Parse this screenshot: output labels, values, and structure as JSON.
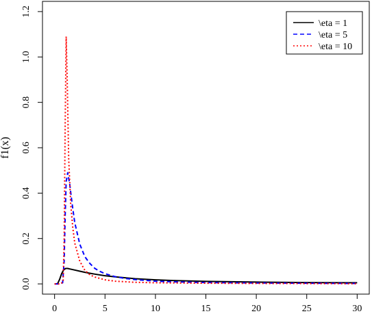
{
  "chart_data": {
    "type": "line",
    "title": "",
    "xlabel": "",
    "ylabel": "f1(x)",
    "xlim": [
      -1.2,
      31.2
    ],
    "ylim": [
      -0.045,
      1.245
    ],
    "x_ticks": [
      0,
      5,
      10,
      15,
      20,
      25,
      30
    ],
    "y_ticks": [
      0.0,
      0.2,
      0.4,
      0.6,
      0.8,
      1.0,
      1.2
    ],
    "x_tick_labels": [
      "0",
      "5",
      "10",
      "15",
      "20",
      "25",
      "30"
    ],
    "y_tick_labels": [
      "0.0",
      "0.2",
      "0.4",
      "0.6",
      "0.8",
      "1.0",
      "1.2"
    ],
    "grid": false,
    "legend_position": "top-right",
    "series": [
      {
        "name": "\\eta = 1",
        "color": "#000000",
        "dash": "solid",
        "points": [
          [
            0,
            0
          ],
          [
            0.3,
            0.001
          ],
          [
            0.5,
            0.02
          ],
          [
            0.7,
            0.045
          ],
          [
            0.9,
            0.062
          ],
          [
            1.1,
            0.068
          ],
          [
            1.3,
            0.068
          ],
          [
            1.5,
            0.066
          ],
          [
            2,
            0.061
          ],
          [
            2.5,
            0.056
          ],
          [
            3,
            0.051
          ],
          [
            3.5,
            0.047
          ],
          [
            4,
            0.043
          ],
          [
            5,
            0.036
          ],
          [
            6,
            0.031
          ],
          [
            7,
            0.027
          ],
          [
            8,
            0.023
          ],
          [
            10,
            0.018
          ],
          [
            12,
            0.0145
          ],
          [
            15,
            0.011
          ],
          [
            20,
            0.008
          ],
          [
            25,
            0.006
          ],
          [
            30,
            0.005
          ]
        ]
      },
      {
        "name": "\\eta = 5",
        "color": "#0000ff",
        "dash": "dashed",
        "points": [
          [
            0,
            0
          ],
          [
            0.5,
            0
          ],
          [
            0.8,
            0.005
          ],
          [
            0.95,
            0.1
          ],
          [
            1.05,
            0.3
          ],
          [
            1.15,
            0.45
          ],
          [
            1.3,
            0.49
          ],
          [
            1.5,
            0.44
          ],
          [
            1.75,
            0.35
          ],
          [
            2,
            0.27
          ],
          [
            2.5,
            0.175
          ],
          [
            3,
            0.12
          ],
          [
            3.5,
            0.09
          ],
          [
            4,
            0.068
          ],
          [
            4.5,
            0.055
          ],
          [
            5,
            0.045
          ],
          [
            6,
            0.032
          ],
          [
            7,
            0.024
          ],
          [
            8,
            0.019
          ],
          [
            10,
            0.012
          ],
          [
            12,
            0.009
          ],
          [
            15,
            0.006
          ],
          [
            20,
            0.004
          ],
          [
            25,
            0.003
          ],
          [
            30,
            0.002
          ]
        ]
      },
      {
        "name": "\\eta = 10",
        "color": "#ff0000",
        "dash": "dotted",
        "points": [
          [
            0,
            0
          ],
          [
            0.6,
            0
          ],
          [
            0.85,
            0.01
          ],
          [
            0.95,
            0.2
          ],
          [
            1.05,
            0.7
          ],
          [
            1.15,
            1.09
          ],
          [
            1.25,
            0.9
          ],
          [
            1.4,
            0.55
          ],
          [
            1.6,
            0.35
          ],
          [
            1.8,
            0.25
          ],
          [
            2,
            0.18
          ],
          [
            2.5,
            0.1
          ],
          [
            3,
            0.06
          ],
          [
            3.5,
            0.04
          ],
          [
            4,
            0.03
          ],
          [
            5,
            0.018
          ],
          [
            6,
            0.012
          ],
          [
            8,
            0.007
          ],
          [
            10,
            0.005
          ],
          [
            15,
            0.003
          ],
          [
            20,
            0.002
          ],
          [
            30,
            0.001
          ]
        ]
      }
    ]
  }
}
